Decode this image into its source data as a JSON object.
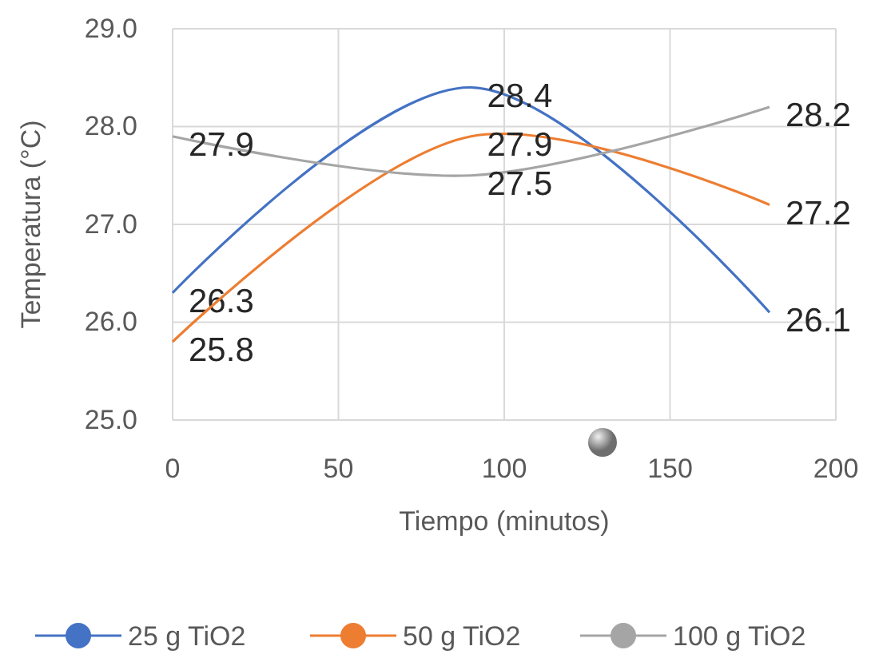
{
  "chart_data": {
    "type": "line",
    "xlabel": "Tiempo (minutos)",
    "ylabel": "Temperatura (°C)",
    "x": [
      0,
      90,
      180
    ],
    "series": [
      {
        "name": "25 g TiO2",
        "color": "#4472c4",
        "values": [
          26.3,
          28.4,
          26.1
        ]
      },
      {
        "name": "50 g TiO2",
        "color": "#ed7d31",
        "values": [
          25.8,
          27.9,
          27.2
        ]
      },
      {
        "name": "100 g TiO2",
        "color": "#a5a5a5",
        "values": [
          27.9,
          27.5,
          28.2
        ]
      }
    ],
    "xlim": [
      0,
      200
    ],
    "xticks": [
      0,
      50,
      100,
      150,
      200
    ],
    "ylim": [
      25,
      29
    ],
    "yticks": [
      {
        "value": 25,
        "label": "25.0"
      },
      {
        "value": 26,
        "label": "26.0"
      },
      {
        "value": 27,
        "label": "27.0"
      },
      {
        "value": 28,
        "label": "28.0"
      },
      {
        "value": 29,
        "label": "29.0"
      }
    ],
    "grid": true,
    "legend": "bottom",
    "data_labels": true,
    "line_style": "solid"
  }
}
